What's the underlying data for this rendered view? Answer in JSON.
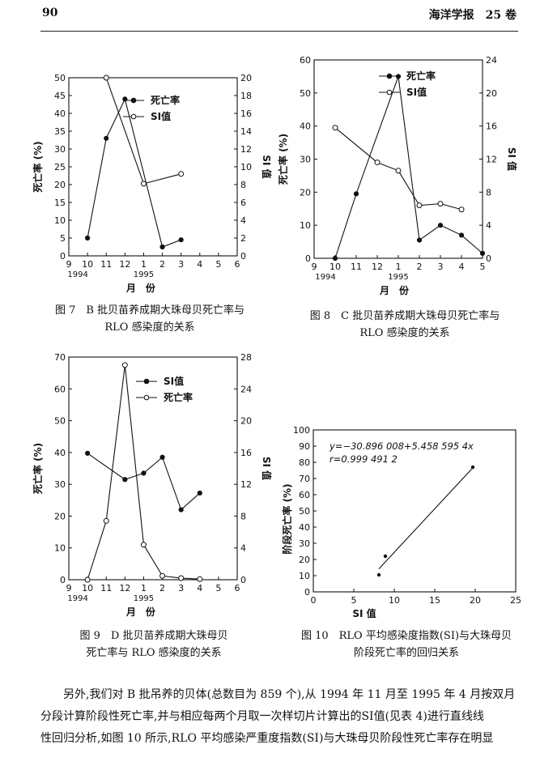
{
  "header": {
    "page_number": "90",
    "journal": "海洋学报　25 卷"
  },
  "figures": [
    {
      "id": "fig7",
      "caption_lines": [
        "图 7　B 批贝苗养成期大珠母贝死亡率与",
        "RLO 感染度的关系"
      ],
      "chart_data": {
        "type": "line",
        "x_tick_labels": [
          "9",
          "10",
          "11",
          "12",
          "1",
          "2",
          "3",
          "4",
          "5",
          "6"
        ],
        "year_labels": [
          "1994",
          "1995"
        ],
        "xlabel": "月　份",
        "ylabel_left": "死亡率 (%)",
        "ylabel_right": "SI 值",
        "ylim_left": [
          0,
          50
        ],
        "yticks_left": [
          0,
          5,
          10,
          15,
          20,
          25,
          30,
          35,
          40,
          45,
          50
        ],
        "ylim_right": [
          0,
          20
        ],
        "yticks_right": [
          0,
          2,
          4,
          6,
          8,
          10,
          12,
          14,
          16,
          18,
          20
        ],
        "legend": [
          "死亡率",
          "SI值"
        ],
        "series": [
          {
            "name": "死亡率",
            "marker": "filled",
            "axis": "left",
            "x": [
              1,
              2,
              3,
              5,
              6
            ],
            "y": [
              5,
              33,
              44,
              2.5,
              4.5
            ]
          },
          {
            "name": "SI值",
            "marker": "open",
            "axis": "right",
            "x": [
              2,
              4,
              6
            ],
            "y": [
              20,
              8.1,
              9.2
            ]
          }
        ]
      }
    },
    {
      "id": "fig8",
      "caption_lines": [
        "图 8　C 批贝苗养成期大珠母贝死亡率与",
        "RLO 感染度的关系"
      ],
      "chart_data": {
        "type": "line",
        "x_tick_labels": [
          "9",
          "10",
          "11",
          "12",
          "1",
          "2",
          "3",
          "4",
          "5"
        ],
        "year_labels": [
          "1994",
          "1995"
        ],
        "xlabel": "月　份",
        "ylabel_left": "死亡率 (%)",
        "ylabel_right": "SI 值",
        "ylim_left": [
          0,
          60
        ],
        "yticks_left": [
          0,
          10,
          20,
          30,
          40,
          50,
          60
        ],
        "ylim_right": [
          0,
          24
        ],
        "yticks_right": [
          0,
          4,
          8,
          12,
          16,
          20,
          24
        ],
        "legend": [
          "死亡率",
          "SI值"
        ],
        "series": [
          {
            "name": "死亡率",
            "marker": "filled",
            "axis": "left",
            "x": [
              1,
              2,
              4,
              5,
              6,
              7,
              8
            ],
            "y": [
              0,
              19.5,
              55,
              5.5,
              10,
              7,
              1.5
            ]
          },
          {
            "name": "SI值",
            "marker": "open",
            "axis": "right",
            "x": [
              1,
              3,
              4,
              5,
              6,
              7
            ],
            "y": [
              15.8,
              11.6,
              10.6,
              6.4,
              6.6,
              5.9
            ]
          }
        ]
      }
    },
    {
      "id": "fig9",
      "caption_lines": [
        "图 9　D 批贝苗养成期大珠母贝",
        "死亡率与 RLO 感染度的关系"
      ],
      "chart_data": {
        "type": "line",
        "x_tick_labels": [
          "9",
          "10",
          "11",
          "12",
          "1",
          "2",
          "3",
          "4",
          "5",
          "6"
        ],
        "year_labels": [
          "1994",
          "1995"
        ],
        "xlabel": "月　份",
        "ylabel_left": "死亡率 (%)",
        "ylabel_right": "SI 值",
        "ylim_left": [
          0,
          70
        ],
        "yticks_left": [
          0,
          10,
          20,
          30,
          40,
          50,
          60,
          70
        ],
        "ylim_right": [
          0,
          28
        ],
        "yticks_right": [
          0,
          4,
          8,
          12,
          16,
          20,
          24,
          28
        ],
        "legend": [
          "SI值",
          "死亡率"
        ],
        "series": [
          {
            "name": "SI值",
            "marker": "filled",
            "axis": "right",
            "x": [
              1,
              3,
              4,
              5,
              6,
              7
            ],
            "y": [
              15.9,
              12.6,
              13.4,
              15.4,
              8.8,
              10.9
            ]
          },
          {
            "name": "死亡率",
            "marker": "open",
            "axis": "left",
            "x": [
              1,
              2,
              3,
              4,
              5,
              6,
              7
            ],
            "y": [
              0,
              18.5,
              67.5,
              11,
              1.2,
              0.5,
              0.2
            ]
          }
        ]
      }
    },
    {
      "id": "fig10",
      "caption_lines": [
        "图 10　RLO 平均感染度指数(SI)与大珠母贝",
        "阶段死亡率的回归关系"
      ],
      "chart_data": {
        "type": "scatter",
        "xlabel": "SI 值",
        "ylabel": "阶段死亡率 (%)",
        "xlim": [
          0,
          25
        ],
        "xticks": [
          0,
          5,
          10,
          15,
          20,
          25
        ],
        "ylim": [
          0,
          100
        ],
        "yticks": [
          0,
          10,
          20,
          30,
          40,
          50,
          60,
          70,
          80,
          90,
          100
        ],
        "annotation_lines": [
          "y=−30.896 008+5.458 595 4x",
          "r=0.999 491 2"
        ],
        "points": [
          {
            "x": 8.1,
            "y": 10.5
          },
          {
            "x": 8.9,
            "y": 22
          },
          {
            "x": 19.7,
            "y": 77
          }
        ],
        "fit_line": {
          "x": [
            8.1,
            19.7
          ],
          "y": [
            14.2,
            76.6
          ]
        }
      }
    }
  ],
  "body_lines": [
    "　　另外,我们对 B 批吊养的贝体(总数目为 859 个),从 1994 年 11 月至 1995 年 4 月按双月",
    "分段计算阶段性死亡率,并与相应每两个月取一次样切片计算出的SI值(见表 4)进行直线线",
    "性回归分析,如图 10 所示,RLO 平均感染严重度指数(SI)与大珠母贝阶段性死亡率存在明显"
  ]
}
